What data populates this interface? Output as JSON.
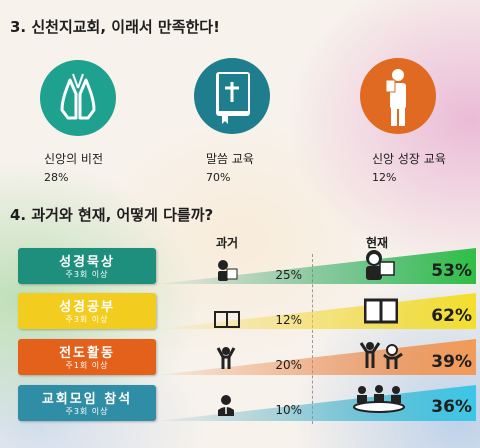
{
  "section1": {
    "title": "3. 신천지교회, 이래서 만족한다!",
    "items": [
      {
        "label": "신앙의 비전",
        "value": "28%",
        "color": "#1ea28f",
        "icon": "praying-hands-icon"
      },
      {
        "label": "말씀 교육",
        "value": "70%",
        "color": "#1f7e8e",
        "icon": "bible-icon"
      },
      {
        "label": "신앙 성장 교육",
        "value": "12%",
        "color": "#e06a22",
        "icon": "person-reading-icon"
      }
    ]
  },
  "section2": {
    "title": "4. 과거와 현재, 어떻게 다를까?",
    "col_past": "과거",
    "col_now": "현재",
    "rows": [
      {
        "label": "성경묵상",
        "sub": "주3회 이상",
        "past": "25%",
        "now": "53%",
        "color": "#1e8f7c",
        "icon_past": "person-reading-icon",
        "icon_now": "person-reading-icon"
      },
      {
        "label": "성경공부",
        "sub": "주3회 이상",
        "past": "12%",
        "now": "62%",
        "color": "#f2cc1f",
        "icon_past": "open-book-icon",
        "icon_now": "open-book-icon"
      },
      {
        "label": "전도활동",
        "sub": "주1회 이상",
        "past": "20%",
        "now": "39%",
        "color": "#e3611b",
        "icon_past": "person-cheering-icon",
        "icon_now": "group-cheering-icon"
      },
      {
        "label": "교회모임 참석",
        "sub": "주3회 이상",
        "past": "10%",
        "now": "36%",
        "color": "#2f8ea5",
        "icon_past": "person-speaker-icon",
        "icon_now": "group-meeting-icon"
      }
    ]
  },
  "chart_data": [
    {
      "type": "bar",
      "categories": [
        "신앙의 비전",
        "말씀 교육",
        "신앙 성장 교육"
      ],
      "values": [
        28,
        70,
        12
      ]
    },
    {
      "type": "bar",
      "categories": [
        "성경묵상",
        "성경공부",
        "전도활동",
        "교회모임 참석"
      ],
      "series": [
        {
          "name": "과거",
          "values": [
            25,
            12,
            20,
            10
          ]
        },
        {
          "name": "현재",
          "values": [
            53,
            62,
            39,
            36
          ]
        }
      ]
    }
  ]
}
